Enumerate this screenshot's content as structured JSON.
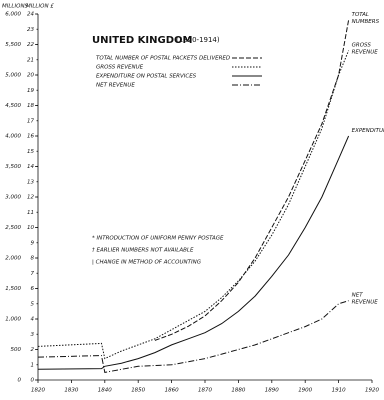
{
  "chart_data": {
    "type": "line",
    "title": "UNITED KINGDOM",
    "subtitle": "(1820-1914)",
    "ylabel": "MILLIONS",
    "y2label": "MILLION £",
    "xlim": [
      1820,
      1920
    ],
    "xticks": [
      1820,
      1830,
      1840,
      1850,
      1860,
      1870,
      1880,
      1890,
      1900,
      1910,
      1920
    ],
    "ylim": [
      0,
      6000
    ],
    "yticks": [
      0,
      500,
      {
        "value": 1000,
        "label": "1,000"
      },
      {
        "value": 1500,
        "label": "1,500"
      },
      {
        "value": 2000,
        "label": "2,000"
      },
      {
        "value": 2500,
        "label": "2,500"
      },
      {
        "value": 3000,
        "label": "3,000"
      },
      {
        "value": 3500,
        "label": "3,500"
      },
      {
        "value": 4000,
        "label": "4,000"
      },
      {
        "value": 4500,
        "label": "4,500"
      },
      {
        "value": 5000,
        "label": "5,000"
      },
      {
        "value": 5500,
        "label": "5,500"
      },
      {
        "value": 6000,
        "label": "6,000"
      }
    ],
    "y2lim": [
      0,
      24
    ],
    "y2ticks": [
      0,
      1,
      2,
      3,
      4,
      5,
      6,
      7,
      8,
      9,
      10,
      11,
      12,
      13,
      14,
      15,
      16,
      17,
      18,
      19,
      20,
      21,
      22,
      23,
      24
    ],
    "series": [
      {
        "name": "TOTAL NUMBER OF POSTAL PACKETS DELIVERED",
        "end_label": "TOTAL NUMBERS",
        "color": "#111111",
        "dash": "5 2",
        "x": [
          1855,
          1860,
          1865,
          1870,
          1875,
          1880,
          1885,
          1890,
          1895,
          1900,
          1905,
          1910,
          1913
        ],
        "values": [
          650,
          750,
          880,
          1050,
          1300,
          1600,
          2000,
          2500,
          3000,
          3600,
          4200,
          5000,
          5900
        ]
      },
      {
        "name": "GROSS REVENUE",
        "end_label": "GROSS REVENUE",
        "color": "#111111",
        "dash": "1.5 1.5",
        "axis": "y2",
        "x": [
          1820,
          1839,
          1840,
          1845,
          1850,
          1855,
          1860,
          1865,
          1870,
          1875,
          1880,
          1885,
          1890,
          1895,
          1900,
          1905,
          1910,
          1913
        ],
        "values": [
          2.2,
          2.4,
          1.4,
          1.9,
          2.3,
          2.7,
          3.3,
          3.9,
          4.5,
          5.4,
          6.5,
          7.8,
          9.5,
          11.5,
          14,
          16.5,
          20,
          21.6
        ]
      },
      {
        "name": "EXPENDITURE ON POSTAL SERVICES",
        "end_label": "EXPENDITURE",
        "color": "#111111",
        "dash": "none",
        "axis": "y2",
        "x": [
          1820,
          1839,
          1840,
          1845,
          1850,
          1855,
          1860,
          1865,
          1870,
          1875,
          1880,
          1885,
          1890,
          1895,
          1900,
          1905,
          1910,
          1913
        ],
        "values": [
          0.7,
          0.75,
          0.9,
          1.1,
          1.4,
          1.8,
          2.3,
          2.7,
          3.1,
          3.7,
          4.5,
          5.5,
          6.8,
          8.2,
          10,
          12,
          14.5,
          16
        ]
      },
      {
        "name": "NET REVENUE",
        "end_label": "NET REVENUE",
        "color": "#111111",
        "dash": "6 2 1 2",
        "axis": "y2",
        "x": [
          1820,
          1839,
          1840,
          1845,
          1850,
          1855,
          1860,
          1865,
          1870,
          1875,
          1880,
          1885,
          1890,
          1895,
          1900,
          1905,
          1910,
          1913
        ],
        "values": [
          1.5,
          1.6,
          0.5,
          0.7,
          0.9,
          0.95,
          1.0,
          1.2,
          1.4,
          1.7,
          2.0,
          2.3,
          2.7,
          3.1,
          3.5,
          4.0,
          5.0,
          5.2
        ]
      }
    ],
    "annotations": [
      "* INTRODUCTION OF UNIFORM PENNY POSTAGE",
      "† EARLIER NUMBERS NOT AVAILABLE",
      "| CHANGE IN METHOD OF ACCOUNTING"
    ]
  }
}
